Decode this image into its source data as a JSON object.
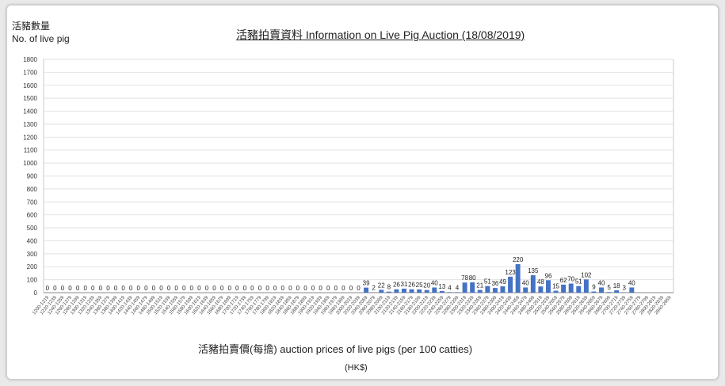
{
  "chart_data": {
    "type": "bar",
    "title": "活豬拍賣資料 Information on Live Pig Auction (18/08/2019)",
    "ylabel_zh": "活豬數量",
    "ylabel_en": "No. of live pig",
    "xlabel": "活豬拍賣價(每擔) auction prices of live pigs (per 100 catties)",
    "xunit": "(HK$)",
    "ylim": [
      0,
      1800
    ],
    "yticks": [
      0,
      100,
      200,
      300,
      400,
      500,
      600,
      700,
      800,
      900,
      1000,
      1100,
      1200,
      1300,
      1400,
      1500,
      1600,
      1700,
      1800
    ],
    "grid": true,
    "bar_color": "#4472c4",
    "categories": [
      "1200-1219",
      "1220-1239",
      "1240-1259",
      "1260-1279",
      "1280-1299",
      "1300-1319",
      "1320-1339",
      "1340-1359",
      "1360-1379",
      "1380-1399",
      "1400-1419",
      "1420-1439",
      "1440-1459",
      "1460-1479",
      "1480-1499",
      "1500-1519",
      "1520-1539",
      "1540-1559",
      "1560-1579",
      "1580-1599",
      "1600-1619",
      "1620-1639",
      "1640-1659",
      "1660-1679",
      "1680-1699",
      "1700-1719",
      "1720-1739",
      "1740-1759",
      "1760-1779",
      "1780-1799",
      "1800-1819",
      "1820-1839",
      "1840-1859",
      "1860-1879",
      "1880-1899",
      "1900-1919",
      "1920-1939",
      "1940-1959",
      "1960-1979",
      "1980-1999",
      "2000-2019",
      "2020-2039",
      "2040-2059",
      "2060-2079",
      "2080-2099",
      "2100-2119",
      "2120-2139",
      "2140-2159",
      "2160-2179",
      "2180-2199",
      "2200-2219",
      "2220-2239",
      "2240-2259",
      "2260-2279",
      "2280-2299",
      "2300-2319",
      "2320-2339",
      "2340-2359",
      "2360-2379",
      "2380-2399",
      "2400-2419",
      "2420-2439",
      "2440-2459",
      "2460-2479",
      "2480-2499",
      "2500-2519",
      "2520-2539",
      "2540-2559",
      "2560-2579",
      "2580-2599",
      "2600-2619",
      "2620-2639",
      "2640-2659",
      "2660-2679",
      "2680-2699",
      "2700-2719",
      "2720-2739",
      "2740-2759",
      "2760-2779",
      "2780-2799",
      "2800-2819",
      "2820-2839",
      "2840-2859"
    ],
    "values": [
      0,
      0,
      0,
      0,
      0,
      0,
      0,
      0,
      0,
      0,
      0,
      0,
      0,
      0,
      0,
      0,
      0,
      0,
      0,
      0,
      0,
      0,
      0,
      0,
      0,
      0,
      0,
      0,
      0,
      0,
      0,
      0,
      0,
      0,
      0,
      0,
      0,
      0,
      0,
      0,
      0,
      0,
      39,
      2,
      22,
      8,
      26,
      31,
      26,
      25,
      20,
      40,
      13,
      4,
      4,
      78,
      80,
      21,
      51,
      36,
      49,
      123,
      220,
      40,
      135,
      48,
      96,
      15,
      62,
      70,
      51,
      102,
      9,
      40,
      5,
      18,
      3,
      40,
      0,
      0,
      0,
      0,
      0
    ],
    "labels": [
      "0",
      "0",
      "0",
      "0",
      "0",
      "0",
      "0",
      "0",
      "0",
      "0",
      "0",
      "0",
      "0",
      "0",
      "0",
      "0",
      "0",
      "0",
      "0",
      "0",
      "0",
      "0",
      "0",
      "0",
      "0",
      "0",
      "0",
      "0",
      "0",
      "0",
      "0",
      "0",
      "0",
      "0",
      "0",
      "0",
      "0",
      "0",
      "0",
      "0",
      "0",
      "0",
      "39",
      "2",
      "22",
      "8",
      "26",
      "31",
      "26",
      "25",
      "20",
      "40",
      "13",
      "4",
      "4",
      "78",
      "80",
      "21",
      "51",
      "36",
      "49",
      "123",
      "220",
      "40",
      "135",
      "48",
      "96",
      "15",
      "62",
      "70",
      "51",
      "102",
      "9",
      "40",
      "5",
      "18",
      "3",
      "40",
      "",
      "",
      "",
      "",
      ""
    ]
  }
}
